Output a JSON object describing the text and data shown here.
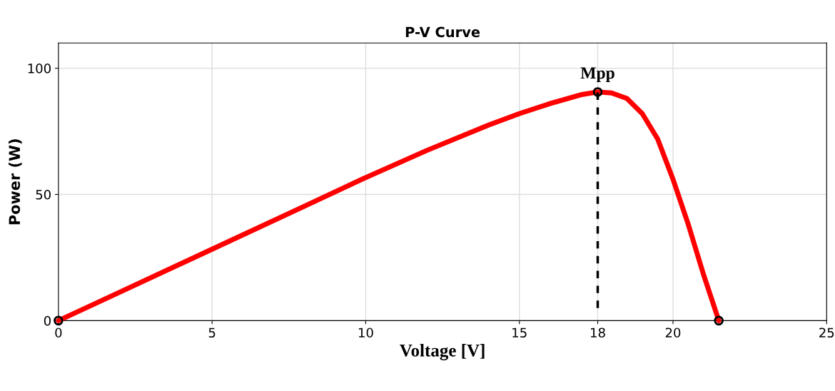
{
  "chart_data": {
    "type": "line",
    "title": "P-V Curve",
    "xlabel": "Voltage [V]",
    "ylabel": "Power (W)",
    "xlim": [
      0,
      25
    ],
    "ylim": [
      0,
      110
    ],
    "xticks": [
      0,
      5,
      10,
      15,
      {
        "value": 17.55,
        "label": "18"
      },
      20,
      25
    ],
    "yticks": [
      0,
      50,
      100
    ],
    "grid": true,
    "annotations": [
      "Mpp"
    ],
    "series": [
      {
        "color": "#ff0000",
        "line_style": "solid",
        "marker": "none",
        "x": [
          0,
          2,
          5,
          8,
          10,
          12,
          14,
          15,
          16,
          17,
          17.55,
          18,
          18.5,
          19,
          19.5,
          20,
          20.5,
          21,
          21.49
        ],
        "values": [
          0,
          11.3,
          28.3,
          45.3,
          56.7,
          67.5,
          77.5,
          82,
          86,
          89.5,
          90.6,
          90.2,
          88,
          82,
          72,
          56,
          38,
          18,
          0
        ]
      },
      {
        "type": "line",
        "color": "#000000",
        "line_style": "dashed",
        "marker": "none",
        "x": [
          17.55,
          17.55
        ],
        "values": [
          5,
          90.6
        ]
      },
      {
        "type": "scatter",
        "color": "#000000",
        "marker": "circle",
        "x": [
          0,
          17.55,
          21.49
        ],
        "values": [
          0,
          90.6,
          0
        ]
      }
    ]
  }
}
